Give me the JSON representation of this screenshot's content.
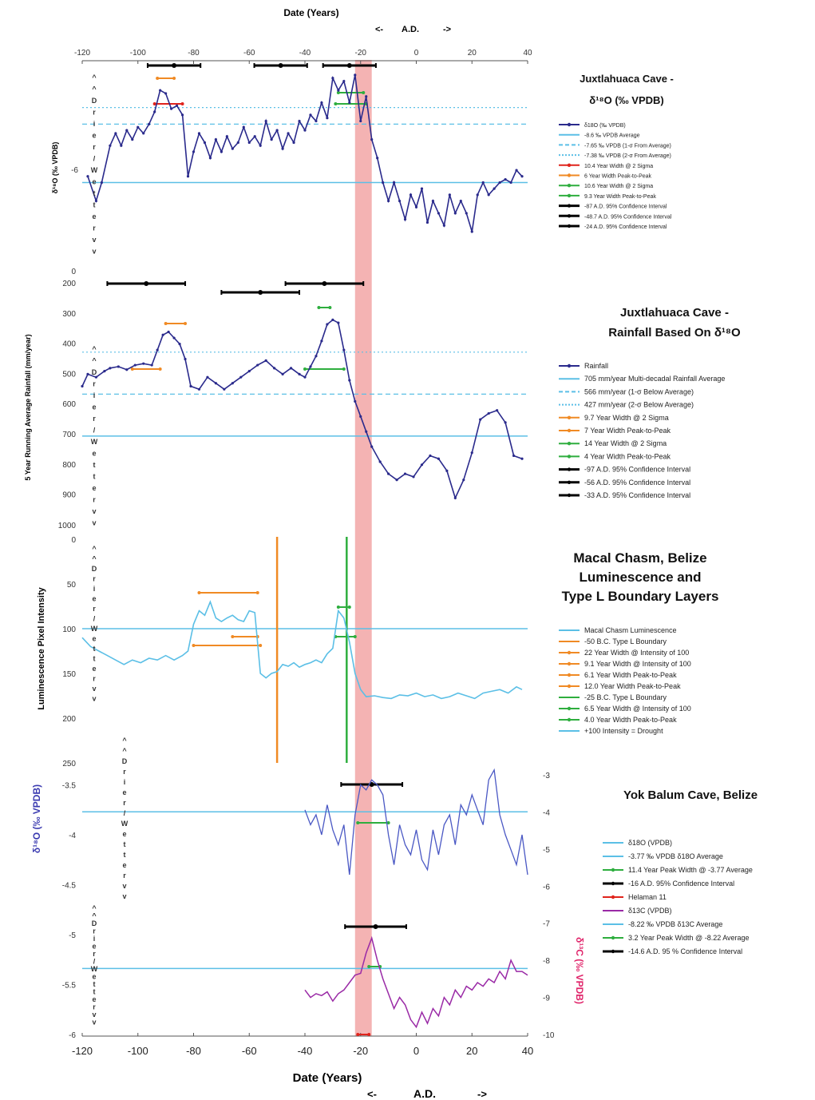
{
  "colors": {
    "navy": "#2a2a8c",
    "light_blue": "#5bbfe6",
    "orange": "#f08a24",
    "green": "#2eae3e",
    "black": "#000000",
    "red": "#e0241c",
    "purple": "#9a2aa6",
    "blue_series": "#4a58c4",
    "band": "#f2a6a6"
  },
  "top_axis": {
    "title": "Date (Years)",
    "ad_label": "A.D.",
    "left_arrow": "<-",
    "right_arrow": "->",
    "ticks": [
      "-120",
      "-100",
      "-80",
      "-60",
      "-40",
      "-20",
      "0",
      "20",
      "40"
    ]
  },
  "bottom_axis": {
    "title": "Date (Years)",
    "ad_label": "A.D.",
    "left_arrow": "<-",
    "right_arrow": "->",
    "ticks": [
      "-120",
      "-100",
      "-80",
      "-60",
      "-40",
      "-20",
      "0",
      "20",
      "40"
    ]
  },
  "wetter_arrow": [
    "^",
    "^",
    "D",
    "r",
    "i",
    "e",
    "r",
    "/",
    "W",
    "e",
    "t",
    "t",
    "e",
    "r",
    "v",
    "v"
  ],
  "panel1": {
    "title_line1": "Juxtlahuaca Cave -",
    "title_line2": "δ¹⁸O  (‰ VPDB)",
    "ylabel": "δ¹⁸O (‰ VPDB)",
    "yticks": [
      "-6"
    ],
    "legend": [
      "δ18O   (‰ VPDB)",
      "-8.6 ‰ VPDB Average",
      "-7.65 ‰ VPDB (1-σ From Average)",
      "-7.38 ‰ VPDB (2-σ From Average)",
      "10.4 Year Width @ 2 Sigma",
      "6 Year Width Peak-to-Peak",
      "10.6 Year Width @ 2 Sigma",
      "9.3 Year Width Peak-to-Peak",
      "-87 A.D. 95% Confidence Interval",
      "-48.7 A.D. 95% Confidence Interval",
      "-24 A.D. 95% Confidence Interval"
    ]
  },
  "panel2": {
    "title_line1": "Juxtlahuaca Cave -",
    "title_line2": "Rainfall Based On δ¹⁸O",
    "ylabel": "5 Year Running Average Rainfall (mm/year)",
    "yticks": [
      "0",
      "200",
      "300",
      "400",
      "500",
      "600",
      "700",
      "800",
      "900",
      "1000"
    ],
    "legend": [
      "Rainfall",
      "705 mm/year Multi-decadal Rainfall Average",
      "566 mm/year (1-σ Below Average)",
      "427 mm/year (2-σ Below Average)",
      "9.7 Year Width @ 2 Sigma",
      "7 Year Width Peak-to-Peak",
      "14 Year Width @ 2 Sigma",
      "4 Year Width Peak-to-Peak",
      "-97 A.D. 95% Confidence Interval",
      "-56 A.D. 95% Confidence Interval",
      "-33 A.D. 95% Confidence Interval"
    ]
  },
  "panel3": {
    "title_line1": "Macal Chasm, Belize",
    "title_line2": "Luminescence and",
    "title_line3": "Type L Boundary Layers",
    "ylabel": "Luminescence Pixel Intensity",
    "yticks": [
      "0",
      "50",
      "100",
      "150",
      "200",
      "250"
    ],
    "legend": [
      "Macal Chasm Luminescence",
      "-50 B.C. Type L Boundary",
      "22 Year Width @ Intensity of 100",
      "9.1 Year Width @ Intensity of 100",
      "6.1 Year Width Peak-to-Peak",
      "12.0 Year Width Peak-to-Peak",
      "-25 B.C. Type L Boundary",
      "6.5 Year Width @ Intensity of 100",
      "4.0 Year Width Peak-to-Peak",
      "+100 Intensity = Drought"
    ]
  },
  "panel4": {
    "title": "Yok Balum Cave, Belize",
    "ylabel_left": "δ¹⁸O (‰ VPDB)",
    "ylabel_right": "δ¹³C (‰ VPDB)",
    "yticks_left": [
      "-3.5",
      "-4",
      "-4.5",
      "-5",
      "-5.5",
      "-6"
    ],
    "yticks_right": [
      "-3",
      "-4",
      "-5",
      "-6",
      "-7",
      "-8",
      "-9",
      "-10"
    ],
    "legend": [
      "δ18O (VPDB)",
      "-3.77 ‰ VPDB δ18O Average",
      "11.4 Year Peak Width @ -3.77 Average",
      "-16 A.D. 95% Confidence Interval",
      "Helaman 11",
      "δ13C (VPDB)",
      "-8.22 ‰ VPDB δ13C Average",
      "3.2 Year Peak Width @ -8.22 Average",
      "-14.6 A.D. 95 % Confidence Interval"
    ]
  },
  "chart_data": [
    {
      "type": "line",
      "title": "Juxtlahuaca Cave - δ18O (‰ VPDB)",
      "xlabel": "Date (Years)",
      "ylabel": "δ18O (‰ VPDB)",
      "xlim": [
        -120,
        40
      ],
      "ylim": [
        -9.4,
        -6.8
      ],
      "series": [
        {
          "name": "δ18O   (‰ VPDB)",
          "x": [
            -118,
            -115,
            -113,
            -110,
            -108,
            -106,
            -104,
            -102,
            -100,
            -98,
            -96,
            -94,
            -92,
            -90,
            -88,
            -86,
            -84,
            -82,
            -80,
            -78,
            -76,
            -74,
            -72,
            -70,
            -68,
            -66,
            -64,
            -62,
            -60,
            -58,
            -56,
            -54,
            -52,
            -50,
            -48,
            -46,
            -44,
            -42,
            -40,
            -38,
            -36,
            -34,
            -32,
            -30,
            -28,
            -26,
            -24,
            -22,
            -20,
            -18,
            -16,
            -14,
            -12,
            -10,
            -8,
            -6,
            -4,
            -2,
            0,
            2,
            4,
            6,
            8,
            10,
            12,
            14,
            16,
            18,
            20,
            22,
            24,
            26,
            28,
            30,
            32,
            34,
            36,
            38
          ],
          "y": [
            -8.5,
            -8.9,
            -8.6,
            -8.0,
            -7.8,
            -8.0,
            -7.75,
            -7.9,
            -7.7,
            -7.8,
            -7.65,
            -7.45,
            -7.1,
            -7.15,
            -7.4,
            -7.35,
            -7.5,
            -8.5,
            -8.1,
            -7.8,
            -7.95,
            -8.2,
            -7.9,
            -8.1,
            -7.85,
            -8.05,
            -7.95,
            -7.7,
            -7.95,
            -7.85,
            -8.0,
            -7.6,
            -7.9,
            -7.75,
            -8.05,
            -7.8,
            -7.95,
            -7.6,
            -7.75,
            -7.5,
            -7.6,
            -7.3,
            -7.55,
            -6.9,
            -7.1,
            -6.95,
            -7.3,
            -6.85,
            -7.6,
            -7.2,
            -7.9,
            -8.2,
            -8.6,
            -8.9,
            -8.6,
            -8.9,
            -9.2,
            -8.8,
            -9.0,
            -8.7,
            -9.25,
            -8.9,
            -9.1,
            -9.3,
            -8.8,
            -9.1,
            -8.9,
            -9.1,
            -9.4,
            -8.8,
            -8.6,
            -8.8,
            -8.7,
            -8.6,
            -8.55,
            -8.6,
            -8.4,
            -8.5
          ]
        }
      ],
      "hlines": [
        -8.6,
        -7.65,
        -7.38
      ],
      "confidence_centers": [
        -87,
        -48.7,
        -24
      ]
    },
    {
      "type": "line",
      "title": "Juxtlahuaca Cave - Rainfall Based On δ18O",
      "xlabel": "Date (Years)",
      "ylabel": "5 Year Running Average Rainfall (mm/year)",
      "xlim": [
        -120,
        40
      ],
      "ylim": [
        1000,
        0
      ],
      "yaxis": "inverted",
      "series": [
        {
          "name": "Rainfall",
          "x": [
            -120,
            -118,
            -115,
            -112,
            -110,
            -107,
            -104,
            -101,
            -98,
            -95,
            -93,
            -91,
            -89,
            -87,
            -85,
            -83,
            -81,
            -78,
            -75,
            -72,
            -69,
            -66,
            -63,
            -60,
            -57,
            -54,
            -51,
            -48,
            -45,
            -42,
            -40,
            -38,
            -36,
            -34,
            -32,
            -30,
            -28,
            -26,
            -24,
            -22,
            -20,
            -18,
            -16,
            -13,
            -10,
            -7,
            -4,
            -1,
            2,
            5,
            8,
            11,
            14,
            17,
            20,
            23,
            26,
            29,
            32,
            35,
            38
          ],
          "y": [
            540,
            500,
            510,
            490,
            480,
            475,
            485,
            470,
            465,
            470,
            420,
            370,
            360,
            380,
            400,
            450,
            540,
            550,
            510,
            530,
            550,
            530,
            510,
            490,
            470,
            455,
            480,
            500,
            480,
            500,
            510,
            475,
            440,
            390,
            335,
            320,
            330,
            420,
            520,
            590,
            640,
            690,
            740,
            790,
            830,
            850,
            830,
            840,
            800,
            770,
            780,
            820,
            910,
            850,
            760,
            650,
            630,
            620,
            660,
            770,
            780
          ]
        }
      ],
      "hlines": [
        705,
        566,
        427
      ],
      "confidence_centers": [
        -97,
        -56,
        -33
      ]
    },
    {
      "type": "line",
      "title": "Macal Chasm, Belize Luminescence and Type L Boundary Layers",
      "xlabel": "Date (Years)",
      "ylabel": "Luminescence Pixel Intensity",
      "xlim": [
        -120,
        40
      ],
      "ylim": [
        250,
        0
      ],
      "yaxis": "inverted",
      "series": [
        {
          "name": "Macal Chasm Luminescence",
          "x": [
            -120,
            -117,
            -114,
            -111,
            -108,
            -105,
            -102,
            -99,
            -96,
            -93,
            -90,
            -87,
            -84,
            -82,
            -80,
            -78,
            -76,
            -74,
            -72,
            -70,
            -68,
            -66,
            -64,
            -62,
            -60,
            -58,
            -56,
            -54,
            -52,
            -50,
            -48,
            -46,
            -44,
            -42,
            -40,
            -38,
            -36,
            -34,
            -32,
            -30,
            -28,
            -26,
            -24,
            -22,
            -20,
            -18,
            -15,
            -12,
            -9,
            -6,
            -3,
            0,
            3,
            6,
            9,
            12,
            15,
            18,
            21,
            24,
            27,
            30,
            33,
            36,
            38
          ],
          "y": [
            110,
            120,
            125,
            130,
            135,
            140,
            135,
            138,
            133,
            135,
            130,
            135,
            130,
            125,
            95,
            80,
            85,
            70,
            88,
            92,
            88,
            85,
            90,
            92,
            80,
            82,
            150,
            155,
            150,
            148,
            140,
            142,
            138,
            143,
            140,
            138,
            135,
            138,
            128,
            122,
            80,
            88,
            115,
            150,
            168,
            176,
            175,
            177,
            178,
            174,
            175,
            172,
            176,
            174,
            178,
            176,
            172,
            175,
            178,
            172,
            170,
            168,
            172,
            165,
            168
          ]
        }
      ],
      "hlines": [
        100
      ],
      "boundaries": [
        -50,
        -25
      ]
    },
    {
      "type": "line",
      "title": "Yok Balum Cave, Belize",
      "xlabel": "Date (Years)",
      "ylabel": "δ18O (‰ VPDB)",
      "ylabel_right": "δ13C (‰ VPDB)",
      "xlim": [
        -120,
        40
      ],
      "ylim": [
        -6,
        -3.4
      ],
      "ylim_right": [
        -10,
        -3
      ],
      "series": [
        {
          "name": "δ18O (VPDB)",
          "x": [
            -40,
            -38,
            -36,
            -34,
            -32,
            -30,
            -28,
            -26,
            -24,
            -22,
            -20,
            -18,
            -16,
            -14,
            -12,
            -10,
            -8,
            -6,
            -4,
            -2,
            0,
            2,
            4,
            6,
            8,
            10,
            12,
            14,
            16,
            18,
            20,
            22,
            24,
            26,
            28,
            30,
            32,
            34,
            36,
            38,
            40
          ],
          "y": [
            -3.75,
            -3.9,
            -3.8,
            -4.0,
            -3.7,
            -3.95,
            -4.1,
            -3.9,
            -4.4,
            -3.8,
            -3.5,
            -3.55,
            -3.45,
            -3.5,
            -3.6,
            -4.0,
            -4.3,
            -3.9,
            -4.1,
            -4.2,
            -3.95,
            -4.25,
            -4.35,
            -3.95,
            -4.2,
            -3.9,
            -3.8,
            -4.1,
            -3.7,
            -3.8,
            -3.6,
            -3.75,
            -3.9,
            -3.45,
            -3.35,
            -3.8,
            -4.0,
            -4.15,
            -4.3,
            -4.0,
            -4.4
          ]
        },
        {
          "name": "δ13C (VPDB)",
          "x": [
            -40,
            -38,
            -36,
            -34,
            -32,
            -30,
            -28,
            -26,
            -24,
            -22,
            -20,
            -18,
            -16,
            -14,
            -12,
            -10,
            -8,
            -6,
            -4,
            -2,
            0,
            2,
            4,
            6,
            8,
            10,
            12,
            14,
            16,
            18,
            20,
            22,
            24,
            26,
            28,
            30,
            32,
            34,
            36,
            38,
            40
          ],
          "y": [
            -8.8,
            -9.0,
            -8.9,
            -8.95,
            -8.85,
            -9.1,
            -8.9,
            -8.8,
            -8.6,
            -8.4,
            -8.35,
            -7.8,
            -7.4,
            -8.0,
            -8.5,
            -8.9,
            -9.3,
            -9.0,
            -9.2,
            -9.6,
            -9.8,
            -9.4,
            -9.7,
            -9.3,
            -9.5,
            -9.0,
            -9.2,
            -8.8,
            -9.0,
            -8.7,
            -8.8,
            -8.6,
            -8.7,
            -8.5,
            -8.6,
            -8.3,
            -8.5,
            -8.0,
            -8.3,
            -8.3,
            -8.4
          ]
        }
      ],
      "hlines": [
        -3.77
      ],
      "hlines_right": [
        -8.22
      ],
      "confidence_centers": [
        -16,
        -14.6
      ]
    }
  ]
}
